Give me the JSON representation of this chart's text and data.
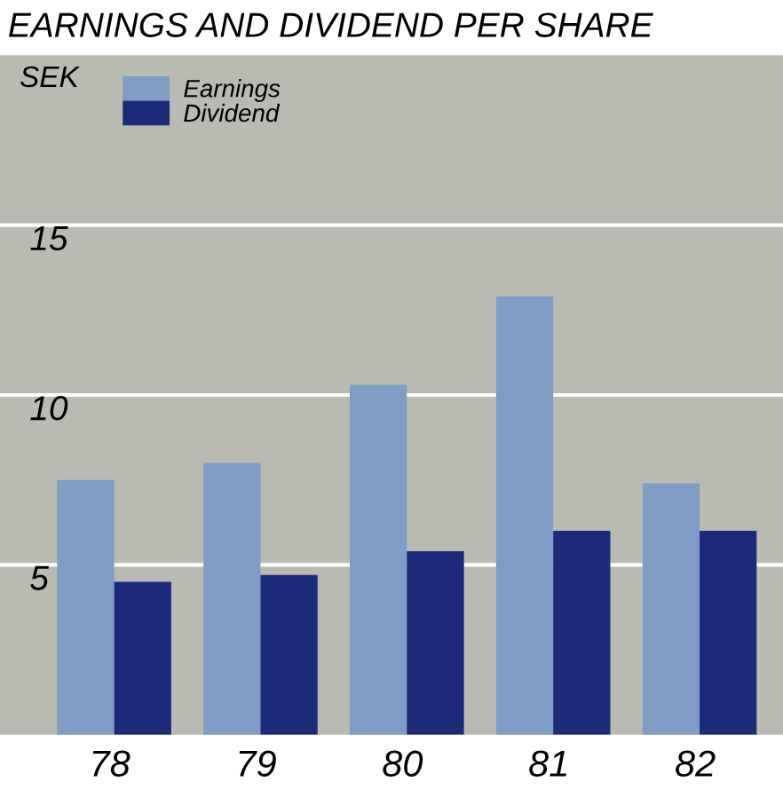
{
  "chart_data": {
    "type": "bar",
    "title": "EARNINGS AND DIVIDEND PER SHARE",
    "ylabel": "SEK",
    "categories": [
      "78",
      "79",
      "80",
      "81",
      "82"
    ],
    "series": [
      {
        "name": "Earnings",
        "color": "#7f9cc6",
        "values": [
          7.5,
          8.0,
          10.3,
          12.9,
          7.4
        ]
      },
      {
        "name": "Dividend",
        "color": "#1b2b7a",
        "values": [
          4.5,
          4.7,
          5.4,
          6.0,
          6.0
        ]
      }
    ],
    "ylim": [
      0,
      20
    ],
    "yticks": [
      5,
      10,
      15
    ],
    "grid": "y",
    "legend": "top left"
  }
}
